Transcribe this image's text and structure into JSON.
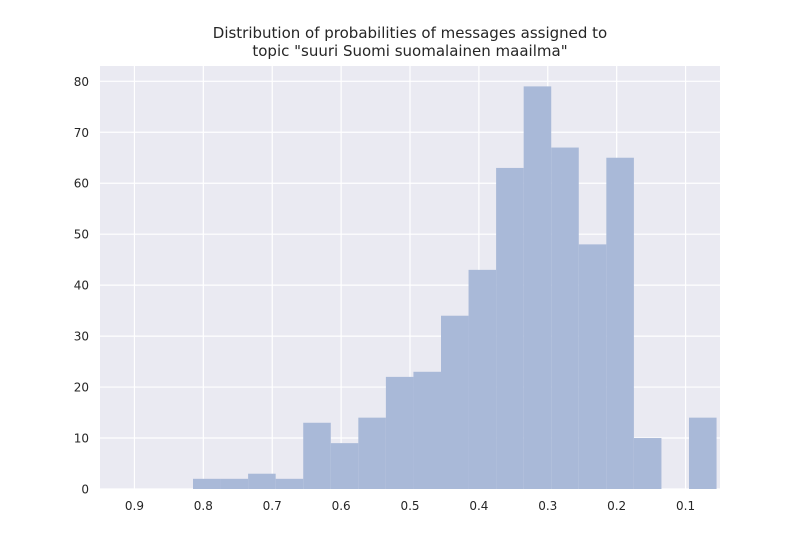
{
  "chart_data": {
    "type": "bar",
    "title_lines": [
      "Distribution of probabilities of messages assigned to",
      "topic \"suuri Suomi suomalainen maailma\""
    ],
    "xlabel": "",
    "ylabel": "",
    "x_axis_reversed": true,
    "xlim": [
      0.95,
      0.05
    ],
    "ylim": [
      0,
      83
    ],
    "grid": true,
    "x_ticks": [
      0.9,
      0.8,
      0.7,
      0.6,
      0.5,
      0.4,
      0.3,
      0.2,
      0.1
    ],
    "x_tick_labels": [
      "0.9",
      "0.8",
      "0.7",
      "0.6",
      "0.5",
      "0.4",
      "0.3",
      "0.2",
      "0.1"
    ],
    "y_ticks": [
      0,
      10,
      20,
      30,
      40,
      50,
      60,
      70,
      80
    ],
    "y_tick_labels": [
      "0",
      "10",
      "20",
      "30",
      "40",
      "50",
      "60",
      "70",
      "80"
    ],
    "bin_edges": [
      0.815,
      0.775,
      0.735,
      0.695,
      0.655,
      0.615,
      0.575,
      0.535,
      0.495,
      0.455,
      0.415,
      0.375,
      0.335,
      0.295,
      0.255,
      0.215,
      0.175,
      0.135,
      0.095,
      0.055
    ],
    "counts": [
      2,
      2,
      3,
      2,
      13,
      9,
      14,
      22,
      23,
      34,
      43,
      63,
      79,
      67,
      48,
      65,
      10,
      0,
      14
    ],
    "bar_color": "#a9b9d8",
    "background_color": "#eaeaf2",
    "grid_color": "#ffffff"
  }
}
